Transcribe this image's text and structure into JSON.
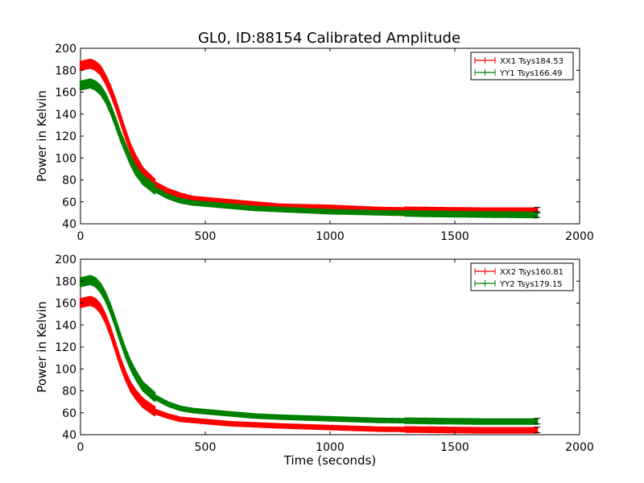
{
  "figure": {
    "title": "GL0, ID:88154 Calibrated Amplitude"
  },
  "chart_data": [
    {
      "type": "line",
      "title": "GL0, ID:88154 Calibrated Amplitude",
      "xlabel": "",
      "ylabel": "Power in Kelvin",
      "xlim": [
        0,
        2000
      ],
      "ylim": [
        40,
        200
      ],
      "xticks": [
        0,
        500,
        1000,
        1500,
        2000
      ],
      "yticks": [
        40,
        60,
        80,
        100,
        120,
        140,
        160,
        180,
        200
      ],
      "xtick_labels": [
        "0",
        "500",
        "1000",
        "1500",
        "2000"
      ],
      "ytick_labels": [
        "40",
        "60",
        "80",
        "100",
        "120",
        "140",
        "160",
        "180",
        "200"
      ],
      "legend_position": "top-right",
      "series": [
        {
          "name": "XX1 Tsys184.53",
          "color": "#ff0000",
          "x": [
            0,
            20,
            40,
            60,
            80,
            100,
            120,
            140,
            160,
            180,
            200,
            220,
            250,
            300,
            350,
            400,
            450,
            500,
            600,
            700,
            800,
            1000,
            1200,
            1400,
            1600,
            1830
          ],
          "y": [
            184,
            185,
            186,
            184,
            180,
            172,
            162,
            150,
            136,
            122,
            109,
            99,
            87,
            76,
            70,
            66,
            63,
            62,
            60,
            58,
            56,
            55,
            53,
            52.5,
            52,
            52
          ]
        },
        {
          "name": "YY1 Tsys166.49",
          "color": "#008000",
          "x": [
            0,
            20,
            40,
            60,
            80,
            100,
            120,
            140,
            160,
            180,
            200,
            220,
            250,
            300,
            350,
            400,
            450,
            500,
            600,
            700,
            800,
            1000,
            1200,
            1400,
            1600,
            1830
          ],
          "y": [
            166,
            167,
            168,
            166,
            162,
            155,
            145,
            133,
            120,
            109,
            98,
            89,
            80,
            71,
            65,
            61,
            59,
            58,
            56,
            54,
            53,
            51,
            50,
            49,
            48.5,
            48
          ]
        }
      ]
    },
    {
      "type": "line",
      "title": "",
      "xlabel": "Time (seconds)",
      "ylabel": "Power in Kelvin",
      "xlim": [
        0,
        2000
      ],
      "ylim": [
        40,
        200
      ],
      "xticks": [
        0,
        500,
        1000,
        1500,
        2000
      ],
      "yticks": [
        40,
        60,
        80,
        100,
        120,
        140,
        160,
        180,
        200
      ],
      "xtick_labels": [
        "0",
        "500",
        "1000",
        "1500",
        "2000"
      ],
      "ytick_labels": [
        "40",
        "60",
        "80",
        "100",
        "120",
        "140",
        "160",
        "180",
        "200"
      ],
      "legend_position": "top-right",
      "series": [
        {
          "name": "XX2 Tsys160.81",
          "color": "#ff0000",
          "x": [
            0,
            20,
            40,
            60,
            80,
            100,
            120,
            140,
            160,
            180,
            200,
            220,
            250,
            300,
            350,
            400,
            450,
            500,
            600,
            700,
            800,
            1000,
            1200,
            1400,
            1600,
            1830
          ],
          "y": [
            160,
            161,
            162,
            160,
            155,
            146,
            134,
            120,
            106,
            94,
            84,
            77,
            69,
            61,
            57,
            54,
            53,
            52,
            50,
            49,
            48,
            46.5,
            45,
            44.5,
            44,
            44
          ]
        },
        {
          "name": "YY2 Tsys179.15",
          "color": "#008000",
          "x": [
            0,
            20,
            40,
            60,
            80,
            100,
            120,
            140,
            160,
            180,
            200,
            220,
            250,
            300,
            350,
            400,
            450,
            500,
            600,
            700,
            800,
            1000,
            1200,
            1400,
            1600,
            1830
          ],
          "y": [
            179,
            180,
            181,
            179,
            174,
            166,
            155,
            142,
            128,
            115,
            104,
            95,
            84,
            74,
            68,
            64,
            62,
            61,
            59,
            57,
            56,
            54.5,
            53,
            52.5,
            52,
            52
          ]
        }
      ]
    }
  ]
}
